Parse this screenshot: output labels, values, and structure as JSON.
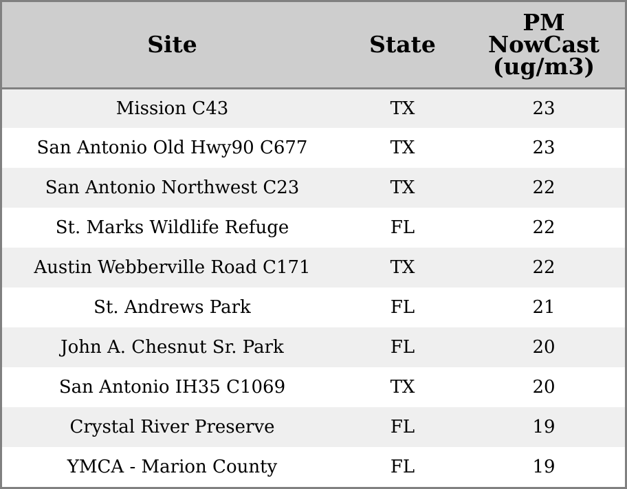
{
  "table": {
    "headers": {
      "site": "Site",
      "state": "State",
      "pm_line1": "PM",
      "pm_line2": "NowCast",
      "pm_line3": "(ug/m3)"
    },
    "rows": [
      {
        "site": "Mission C43",
        "state": "TX",
        "pm": "23"
      },
      {
        "site": "San Antonio Old Hwy90 C677",
        "state": "TX",
        "pm": "23"
      },
      {
        "site": "San Antonio Northwest C23",
        "state": "TX",
        "pm": "22"
      },
      {
        "site": "St. Marks Wildlife Refuge",
        "state": "FL",
        "pm": "22"
      },
      {
        "site": "Austin Webberville Road C171",
        "state": "TX",
        "pm": "22"
      },
      {
        "site": "St. Andrews Park",
        "state": "FL",
        "pm": "21"
      },
      {
        "site": "John A. Chesnut Sr. Park",
        "state": "FL",
        "pm": "20"
      },
      {
        "site": "San Antonio IH35 C1069",
        "state": "TX",
        "pm": "20"
      },
      {
        "site": "Crystal River Preserve",
        "state": "FL",
        "pm": "19"
      },
      {
        "site": "YMCA - Marion County",
        "state": "FL",
        "pm": "19"
      }
    ]
  },
  "colors": {
    "header_bg": "#cecece",
    "stripe_bg": "#efefef",
    "border": "#808080"
  }
}
